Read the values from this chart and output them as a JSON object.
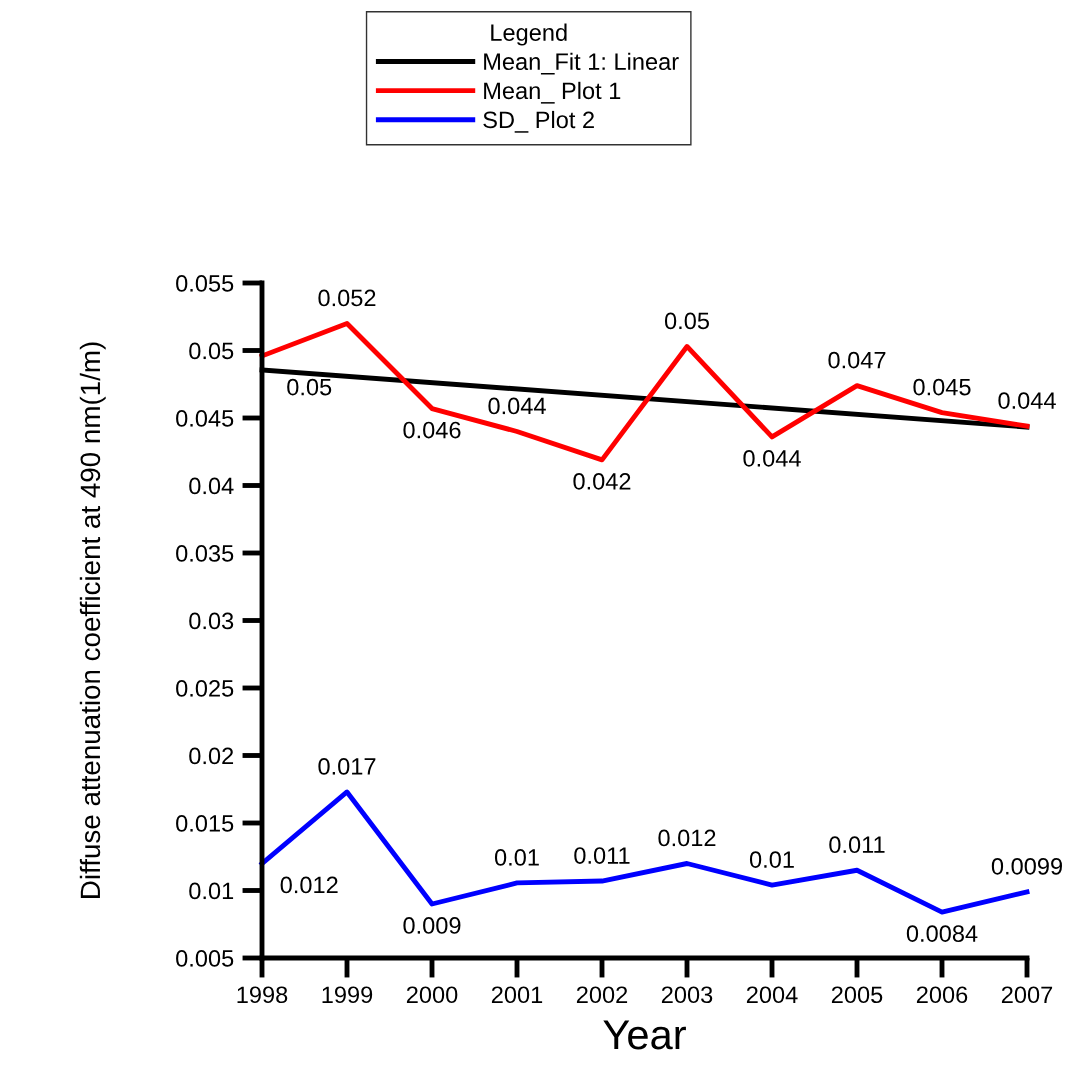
{
  "chart_data": {
    "type": "line",
    "xlabel": "Year",
    "ylabel": "Diffuse attenuation coefficient at 490 nm(1/m)",
    "legend_title": "Legend",
    "legend": "top",
    "grid": false,
    "marker": "none",
    "line_style": "solid",
    "x": [
      1998,
      1999,
      2000,
      2001,
      2002,
      2003,
      2004,
      2005,
      2006,
      2007
    ],
    "xlim": [
      1998,
      2007
    ],
    "xticks": [
      1998,
      1999,
      2000,
      2001,
      2002,
      2003,
      2004,
      2005,
      2006,
      2007
    ],
    "ylim": [
      0.005,
      0.055
    ],
    "yticks": [
      0.005,
      0.01,
      0.015,
      0.02,
      0.025,
      0.03,
      0.035,
      0.04,
      0.045,
      0.05,
      0.055
    ],
    "series": [
      {
        "name": "Mean_Fit 1: Linear",
        "color": "#000000",
        "x": [
          1998,
          2007
        ],
        "values": [
          0.04856,
          0.04433
        ]
      },
      {
        "name": "Mean_ Plot 1",
        "color": "#ff0000",
        "values": [
          0.0496,
          0.052,
          0.0457,
          0.044,
          0.0419,
          0.0503,
          0.0436,
          0.0474,
          0.0454,
          0.0444
        ],
        "value_labels": [
          "0.05",
          "0.052",
          "0.046",
          "0.044",
          "0.042",
          "0.05",
          "0.044",
          "0.047",
          "0.045",
          "0.044"
        ]
      },
      {
        "name": "SD_ Plot 2",
        "color": "#0000ff",
        "values": [
          0.012,
          0.0173,
          0.009,
          0.01056,
          0.0107,
          0.012,
          0.0104,
          0.0115,
          0.0084,
          0.0099
        ],
        "value_labels": [
          "0.012",
          "0.017",
          "0.009",
          "0.01",
          "0.011",
          "0.012",
          "0.01",
          "0.011",
          "0.0084",
          "0.0099"
        ]
      }
    ]
  }
}
